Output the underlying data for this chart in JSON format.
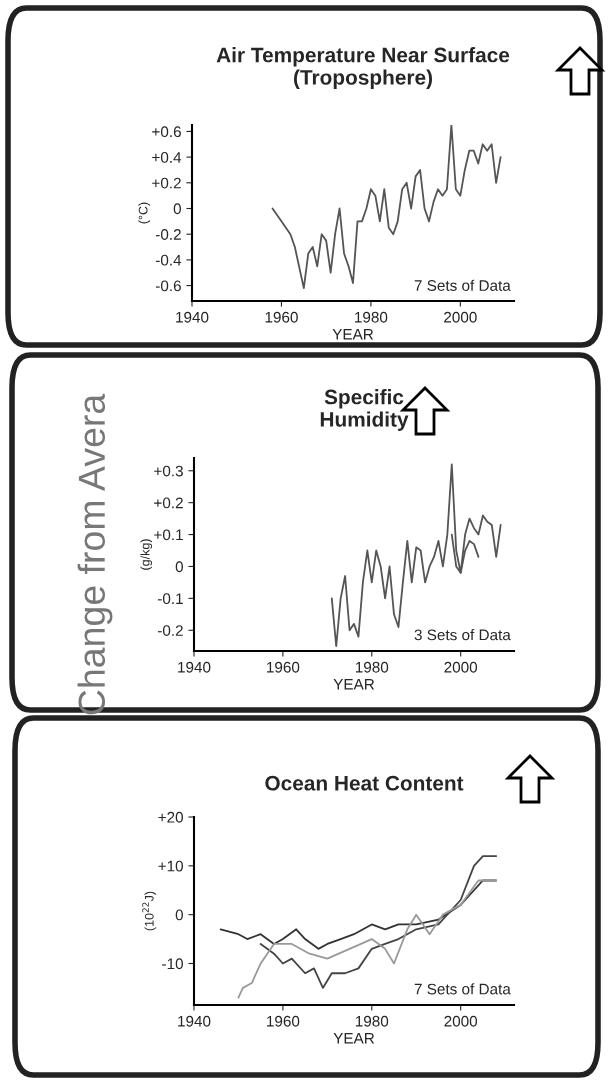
{
  "chart_data": [
    {
      "type": "line",
      "title": "Air Temperature Near Surface\n(Troposphere)",
      "xlabel": "YEAR",
      "ylabel": "(°C)",
      "annotations": [
        "7 Sets of Data"
      ],
      "xlim": [
        1940,
        2012
      ],
      "ylim": [
        -0.72,
        0.65
      ],
      "xticks": [
        1940,
        1960,
        1980,
        2000
      ],
      "yticks": [
        -0.6,
        -0.4,
        -0.2,
        0,
        {
          "value": 0.2,
          "label": "+0.2"
        },
        {
          "value": 0.4,
          "label": "+0.4"
        },
        {
          "value": 0.6,
          "label": "+0.6"
        }
      ],
      "grid": false,
      "legend": false,
      "series": [
        {
          "color": "#555555",
          "x": [
            1958,
            1960,
            1962,
            1963,
            1965,
            1966,
            1967,
            1968,
            1969,
            1970,
            1971,
            1972,
            1973,
            1974,
            1975,
            1976,
            1977,
            1978,
            1979,
            1980,
            1981,
            1982,
            1983,
            1984,
            1985,
            1986,
            1987,
            1988,
            1989,
            1990,
            1991,
            1992,
            1993,
            1994,
            1995,
            1996,
            1997,
            1998,
            1999,
            2000,
            2001,
            2002,
            2003,
            2004,
            2005,
            2006,
            2007,
            2008,
            2009
          ],
          "values": [
            0.0,
            -0.1,
            -0.2,
            -0.3,
            -0.62,
            -0.35,
            -0.3,
            -0.45,
            -0.2,
            -0.25,
            -0.5,
            -0.2,
            0.0,
            -0.35,
            -0.45,
            -0.58,
            -0.1,
            -0.1,
            0.0,
            0.15,
            0.1,
            -0.1,
            0.15,
            -0.15,
            -0.2,
            -0.1,
            0.15,
            0.2,
            0.0,
            0.25,
            0.3,
            0.0,
            -0.1,
            0.05,
            0.15,
            0.1,
            0.15,
            0.65,
            0.15,
            0.1,
            0.3,
            0.45,
            0.45,
            0.35,
            0.5,
            0.45,
            0.5,
            0.2,
            0.4
          ]
        }
      ]
    },
    {
      "type": "line",
      "title": "Specific\nHumidity",
      "xlabel": "YEAR",
      "ylabel": "(g/kg)",
      "annotations": [
        "3 Sets of Data",
        "Change from Avera"
      ],
      "xlim": [
        1940,
        2012
      ],
      "ylim": [
        -0.265,
        0.34
      ],
      "xticks": [
        1940,
        1960,
        1980,
        2000
      ],
      "yticks": [
        -0.2,
        -0.1,
        0,
        {
          "value": 0.1,
          "label": "+0.1"
        },
        {
          "value": 0.2,
          "label": "+0.2"
        },
        {
          "value": 0.3,
          "label": "+0.3"
        }
      ],
      "grid": false,
      "legend": false,
      "series": [
        {
          "color": "#555555",
          "x": [
            1971,
            1972,
            1973,
            1974,
            1975,
            1976,
            1977,
            1978,
            1979,
            1980,
            1981,
            1982,
            1983,
            1984,
            1985,
            1986,
            1987,
            1988,
            1989,
            1990,
            1991,
            1992,
            1993,
            1994,
            1995,
            1996,
            1997,
            1998,
            1999,
            2000,
            2001,
            2002,
            2003,
            2004,
            2005,
            2006,
            2007,
            2008,
            2009
          ],
          "values": [
            -0.1,
            -0.25,
            -0.1,
            -0.03,
            -0.2,
            -0.18,
            -0.22,
            -0.05,
            0.05,
            -0.05,
            0.05,
            0.0,
            -0.1,
            0.0,
            -0.15,
            -0.19,
            -0.05,
            0.08,
            -0.05,
            0.06,
            0.05,
            -0.05,
            0.0,
            0.03,
            0.08,
            0.0,
            0.1,
            0.32,
            0.05,
            -0.02,
            0.1,
            0.15,
            0.12,
            0.1,
            0.16,
            0.14,
            0.13,
            0.03,
            0.13
          ]
        },
        {
          "color": "#555555",
          "x": [
            1998,
            1999,
            2000,
            2001,
            2002,
            2003,
            2004
          ],
          "values": [
            0.1,
            0.0,
            -0.02,
            0.05,
            0.08,
            0.07,
            0.03
          ]
        }
      ]
    },
    {
      "type": "line",
      "title": "Ocean Heat Content",
      "xlabel": "YEAR",
      "ylabel": "(10$^{22}$J)",
      "annotations": [
        "7 Sets of Data"
      ],
      "xlim": [
        1940,
        2012
      ],
      "ylim": [
        -18.5,
        20
      ],
      "xticks": [
        1940,
        1960,
        1980,
        2000
      ],
      "yticks": [
        -10,
        0,
        {
          "value": 10,
          "label": "+10"
        },
        {
          "value": 20,
          "label": "+20"
        }
      ],
      "grid": false,
      "legend": false,
      "series": [
        {
          "color": "#333333",
          "x": [
            1946,
            1950,
            1952,
            1955,
            1958,
            1960,
            1963,
            1965,
            1968,
            1970,
            1973,
            1976,
            1980,
            1983,
            1986,
            1990,
            1995,
            2000,
            2003,
            2005,
            2008
          ],
          "values": [
            -3,
            -4,
            -5,
            -4,
            -6,
            -5,
            -3,
            -5,
            -7,
            -6,
            -5,
            -4,
            -2,
            -3,
            -2,
            -2,
            -1,
            2,
            5,
            7,
            7
          ]
        },
        {
          "color": "#444444",
          "x": [
            1955,
            1958,
            1960,
            1962,
            1965,
            1967,
            1969,
            1971,
            1974,
            1977,
            1980,
            1983,
            1986,
            1990,
            1995,
            2000,
            2003,
            2005,
            2008
          ],
          "values": [
            -6,
            -8,
            -10,
            -9,
            -12,
            -11,
            -15,
            -12,
            -12,
            -11,
            -7,
            -6,
            -5,
            -3,
            -2,
            3,
            10,
            12,
            12
          ]
        },
        {
          "color": "#999999",
          "x": [
            1950,
            1951,
            1953,
            1955,
            1958,
            1962,
            1966,
            1970,
            1975,
            1980,
            1983,
            1985,
            1988,
            1990,
            1993,
            1996,
            2000,
            2004,
            2008
          ],
          "values": [
            -17,
            -15,
            -14,
            -10,
            -6,
            -6,
            -8,
            -9,
            -7,
            -5,
            -7,
            -10,
            -3,
            0,
            -4,
            0,
            2,
            7,
            7
          ]
        }
      ]
    }
  ]
}
